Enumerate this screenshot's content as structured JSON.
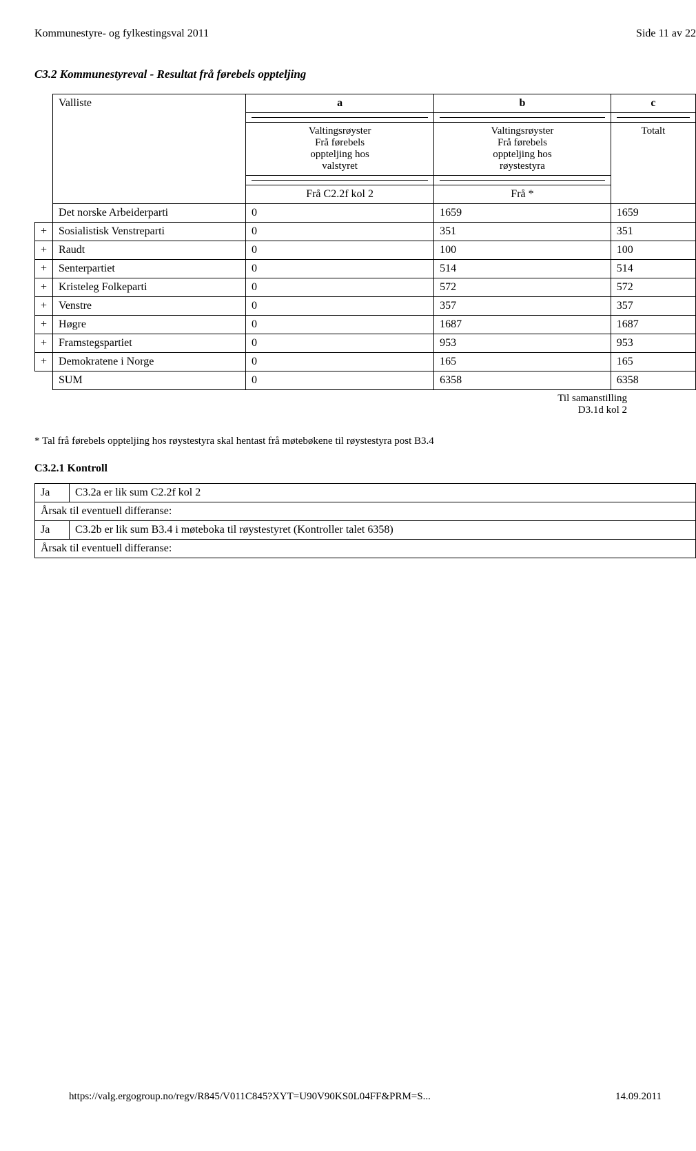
{
  "header": {
    "left": "Kommunestyre- og fylkestingsval 2011",
    "right": "Side 11 av 22"
  },
  "section": {
    "title": "C3.2 Kommunestyreval - Resultat frå førebels oppteljing"
  },
  "table": {
    "valliste": "Valliste",
    "col_a": "a",
    "col_b": "b",
    "col_c": "c",
    "sub_a": "Valtingsrøyster\nFrå førebels\noppteljing hos\nvalstyret",
    "sub_b": "Valtingsrøyster\nFrå førebels\noppteljing hos\nrøystestyra",
    "sub_c": "Totalt",
    "fra_a": "Frå C2.2f kol 2",
    "fra_b": "Frå *",
    "rows": [
      {
        "plus": "",
        "name": "Det norske Arbeiderparti",
        "a": "0",
        "b": "1659",
        "c": "1659"
      },
      {
        "plus": "+",
        "name": "Sosialistisk Venstreparti",
        "a": "0",
        "b": "351",
        "c": "351"
      },
      {
        "plus": "+",
        "name": "Raudt",
        "a": "0",
        "b": "100",
        "c": "100"
      },
      {
        "plus": "+",
        "name": "Senterpartiet",
        "a": "0",
        "b": "514",
        "c": "514"
      },
      {
        "plus": "+",
        "name": "Kristeleg Folkeparti",
        "a": "0",
        "b": "572",
        "c": "572"
      },
      {
        "plus": "+",
        "name": "Venstre",
        "a": "0",
        "b": "357",
        "c": "357"
      },
      {
        "plus": "+",
        "name": "Høgre",
        "a": "0",
        "b": "1687",
        "c": "1687"
      },
      {
        "plus": "+",
        "name": "Framstegspartiet",
        "a": "0",
        "b": "953",
        "c": "953"
      },
      {
        "plus": "+",
        "name": "Demokratene i Norge",
        "a": "0",
        "b": "165",
        "c": "165"
      }
    ],
    "sum_row": {
      "plus": "",
      "name": "SUM",
      "a": "0",
      "b": "6358",
      "c": "6358"
    },
    "note": "Til samanstilling\nD3.1d kol 2"
  },
  "footnote": "* Tal frå førebels oppteljing hos røystestyra skal hentast frå møtebøkene til røystestyra post B3.4",
  "kontroll": {
    "title": "C3.2.1 Kontroll",
    "rows": [
      {
        "ja": "Ja",
        "text": "C3.2a er lik sum C2.2f kol 2"
      },
      {
        "span": "Årsak til eventuell differanse:"
      },
      {
        "ja": "Ja",
        "text": "C3.2b er lik sum B3.4 i møteboka til røystestyret (Kontroller talet 6358)"
      },
      {
        "span": "Årsak til eventuell differanse:"
      }
    ]
  },
  "footer": {
    "left": "https://valg.ergogroup.no/regv/R845/V011C845?XYT=U90V90KS0L04FF&PRM=S...",
    "right": "14.09.2011"
  }
}
